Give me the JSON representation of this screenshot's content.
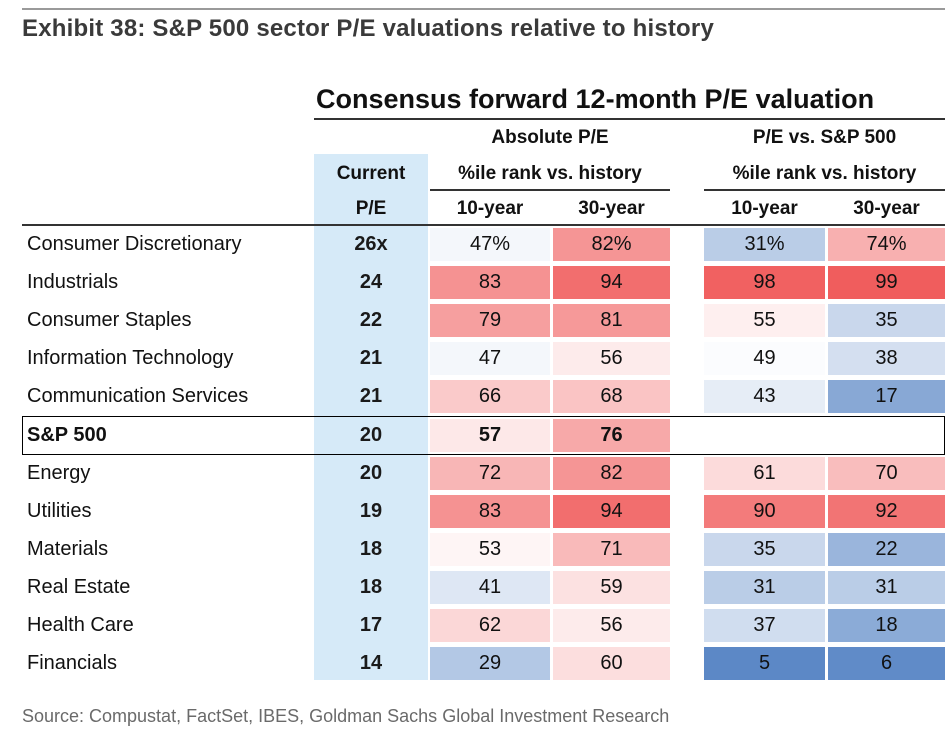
{
  "exhibit_title": "Exhibit 38: S&P 500 sector P/E valuations relative to history",
  "source": "Source: Compustat, FactSet, IBES, Goldman Sachs Global Investment Research",
  "colors": {
    "high": "#f05a5a",
    "mid": "#ffffff",
    "low": "#4a7bc0",
    "current_col": "#d6eaf8"
  },
  "chart_data": {
    "type": "table",
    "title": "Consensus forward 12-month P/E valuation",
    "headers": {
      "current_line1": "Current",
      "current_line2": "P/E",
      "absolute_group": "Absolute P/E",
      "relative_group": "P/E vs. S&P 500",
      "pct_rank": "%ile rank vs. history",
      "ten_year": "10-year",
      "thirty_year": "30-year"
    },
    "rows": [
      {
        "sector": "Consumer Discretionary",
        "pe": "26x",
        "abs10": "47%",
        "abs30": "82%",
        "rel10": "31%",
        "rel30": "74%"
      },
      {
        "sector": "Industrials",
        "pe": "24",
        "abs10": "83",
        "abs30": "94",
        "rel10": "98",
        "rel30": "99"
      },
      {
        "sector": "Consumer Staples",
        "pe": "22",
        "abs10": "79",
        "abs30": "81",
        "rel10": "55",
        "rel30": "35"
      },
      {
        "sector": "Information Technology",
        "pe": "21",
        "abs10": "47",
        "abs30": "56",
        "rel10": "49",
        "rel30": "38"
      },
      {
        "sector": "Communication Services",
        "pe": "21",
        "abs10": "66",
        "abs30": "68",
        "rel10": "43",
        "rel30": "17"
      },
      {
        "sector": "S&P 500",
        "pe": "20",
        "abs10": "57",
        "abs30": "76",
        "rel10": "",
        "rel30": "",
        "highlight": true
      },
      {
        "sector": "Energy",
        "pe": "20",
        "abs10": "72",
        "abs30": "82",
        "rel10": "61",
        "rel30": "70"
      },
      {
        "sector": "Utilities",
        "pe": "19",
        "abs10": "83",
        "abs30": "94",
        "rel10": "90",
        "rel30": "92"
      },
      {
        "sector": "Materials",
        "pe": "18",
        "abs10": "53",
        "abs30": "71",
        "rel10": "35",
        "rel30": "22"
      },
      {
        "sector": "Real Estate",
        "pe": "18",
        "abs10": "41",
        "abs30": "59",
        "rel10": "31",
        "rel30": "31"
      },
      {
        "sector": "Health Care",
        "pe": "17",
        "abs10": "62",
        "abs30": "56",
        "rel10": "37",
        "rel30": "18"
      },
      {
        "sector": "Financials",
        "pe": "14",
        "abs10": "29",
        "abs30": "60",
        "rel10": "5",
        "rel30": "6"
      }
    ]
  }
}
